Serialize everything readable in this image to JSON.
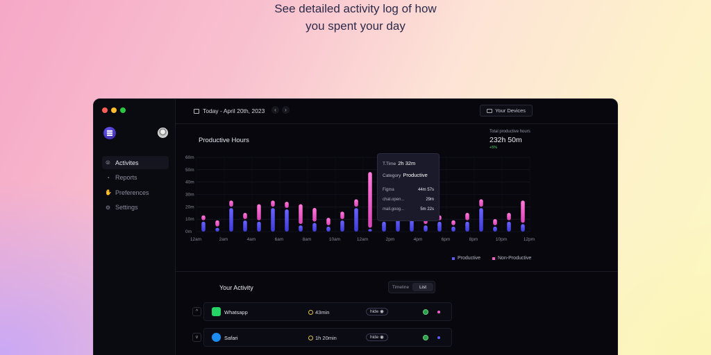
{
  "hero": {
    "line1": "See detailed activity log of how",
    "line2": "you spent your day"
  },
  "window": {
    "traffic_colors": [
      "#ff5f57",
      "#febc2e",
      "#28c840"
    ]
  },
  "sidebar": {
    "items": [
      {
        "label": "Activites",
        "icon": "activity-icon",
        "active": true
      },
      {
        "label": "Reports",
        "icon": "clock-icon",
        "active": false
      },
      {
        "label": "Preferences",
        "icon": "hand-icon",
        "active": false
      },
      {
        "label": "Settings",
        "icon": "gear-icon",
        "active": false
      }
    ]
  },
  "topbar": {
    "date": "Today - April 20th, 2023",
    "prev": "‹",
    "next": "›",
    "devices_label": "Your Devices"
  },
  "summary": {
    "total_label": "Total productive hours",
    "total_value": "232h 50m",
    "change": "+5%"
  },
  "chart_data": {
    "type": "bar",
    "title": "Productive Hours",
    "y_ticks": [
      "0m",
      "10m",
      "20m",
      "30m",
      "40m",
      "50m",
      "60m"
    ],
    "ylim": [
      0,
      60
    ],
    "x_ticks": [
      "12am",
      "2am",
      "4am",
      "6am",
      "8am",
      "10am",
      "12am",
      "2pm",
      "4pm",
      "6pm",
      "8pm",
      "10pm",
      "12pm"
    ],
    "grid": true,
    "legend_position": "bottom-right",
    "colors": {
      "productive": "#5b5cf6",
      "non_productive": "#f060c8"
    },
    "series": [
      {
        "name": "Productive",
        "values": [
          8,
          3,
          19,
          9,
          8,
          19,
          18,
          5,
          7,
          4,
          9,
          19,
          2,
          8,
          12,
          10,
          5,
          8,
          4,
          8,
          19,
          4,
          8,
          6
        ]
      },
      {
        "name": "Non-Productive",
        "values": [
          4,
          5,
          5,
          5,
          13,
          5,
          5,
          16,
          11,
          6,
          6,
          6,
          45,
          16,
          4,
          5,
          8,
          4,
          4,
          6,
          6,
          5,
          6,
          18
        ]
      }
    ],
    "tooltip": {
      "time_label": "T.Time",
      "time_value": "2h 32m",
      "category_label": "Category",
      "category_value": "Productive",
      "apps": [
        {
          "name": "Figma",
          "time": "44m 57s"
        },
        {
          "name": "chat.open...",
          "time": "29m"
        },
        {
          "name": "mail.goog...",
          "time": "5m 22s"
        }
      ]
    }
  },
  "activity": {
    "title": "Your Activity",
    "toggle": {
      "timeline": "Timeline",
      "list": "List"
    },
    "rows": [
      {
        "expander": "^",
        "app": "Whatsapp",
        "icon": "whatsapp-icon",
        "icon_color": "#25d366",
        "time": "43min",
        "hide": "hide ◉",
        "dot_color": "#f060c8"
      },
      {
        "expander": "v",
        "app": "Safari",
        "icon": "safari-icon",
        "icon_color": "#1d8cf0",
        "time": "1h 20min",
        "hide": "hide ◉",
        "dot_color": "#5b5cf6"
      }
    ]
  }
}
